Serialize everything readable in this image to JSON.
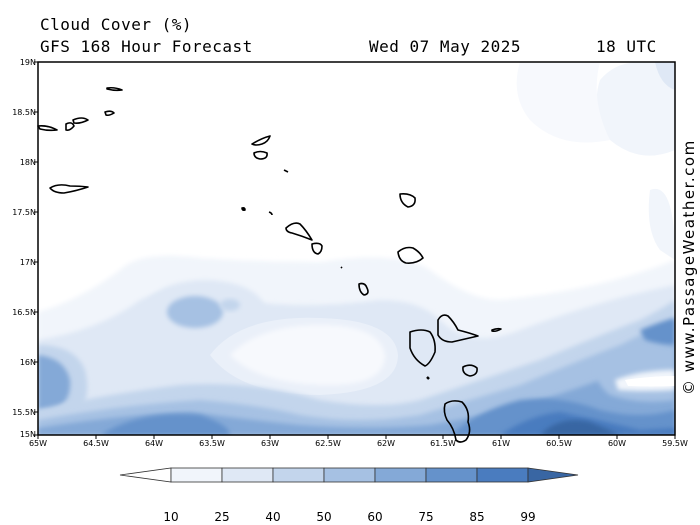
{
  "header": {
    "title": "Cloud Cover (%)",
    "subtitle": "GFS 168 Hour Forecast",
    "date": "Wed 07 May 2025",
    "time": "18 UTC"
  },
  "map": {
    "lat_labels": [
      "19N",
      "18.5N",
      "18N",
      "17.5N",
      "17N",
      "16.5N",
      "16N",
      "15.5N",
      "15N"
    ],
    "lon_labels": [
      "65W",
      "64.5W",
      "64W",
      "63.5W",
      "63W",
      "62.5W",
      "62W",
      "61.5W",
      "61W",
      "60.5W",
      "60W",
      "59.5W"
    ]
  },
  "watermark": "© www.PassageWeather.com",
  "legend": {
    "labels": [
      "10",
      "25",
      "40",
      "50",
      "60",
      "75",
      "85",
      "99"
    ],
    "colors": [
      "#ffffff",
      "#f1f5fb",
      "#dfe8f5",
      "#c3d5ec",
      "#a6c1e3",
      "#84a9d7",
      "#6592cb",
      "#4a7cbf",
      "#3966a3"
    ]
  }
}
